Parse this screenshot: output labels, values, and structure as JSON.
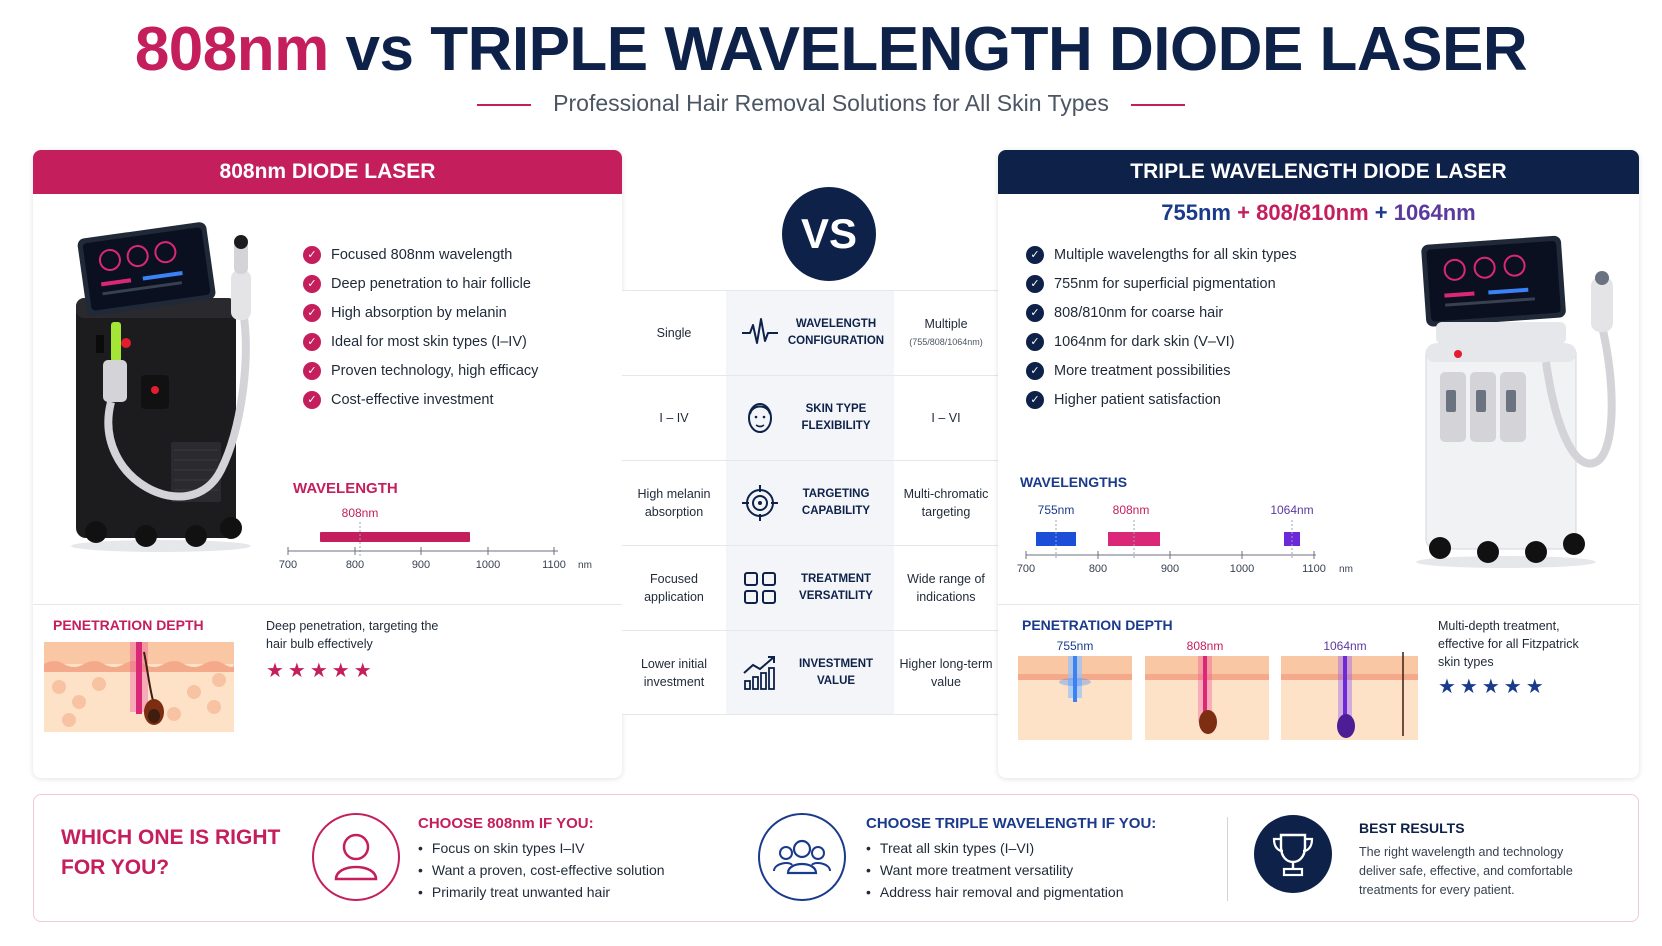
{
  "header": {
    "title_highlight": "808nm",
    "title_rest": "vs TRIPLE WAVELENGTH DIODE LASER",
    "subtitle": "Professional Hair Removal Solutions for All Skin Types"
  },
  "left": {
    "heading": "808nm DIODE LASER",
    "features": [
      "Focused 808nm wavelength",
      "Deep penetration to hair follicle",
      "High absorption by melanin",
      "Ideal for most skin types (I–IV)",
      "Proven technology, high efficacy",
      "Cost-effective investment"
    ],
    "wavelength_label": "WAVELENGTH",
    "band_label": "808nm",
    "axis_ticks": [
      "700",
      "800",
      "900",
      "1000",
      "1100"
    ],
    "axis_unit": "nm",
    "penetration_label": "PENETRATION DEPTH",
    "penetration_text": "Deep penetration, targeting the hair bulb effectively",
    "stars": "★★★★★",
    "accent": "#c41e5c"
  },
  "right": {
    "heading": "TRIPLE WAVELENGTH DIODE LASER",
    "wl_a": "755nm",
    "wl_b": "808/810nm",
    "wl_c": "1064nm",
    "plus": "+",
    "features": [
      "Multiple wavelengths for all skin types",
      "755nm for superficial pigmentation",
      "808/810nm for coarse hair",
      "1064nm for dark skin (V–VI)",
      "More treatment possibilities",
      "Higher patient satisfaction"
    ],
    "wavelength_label": "WAVELENGTHS",
    "band_labels": [
      "755nm",
      "808nm",
      "1064nm"
    ],
    "axis_ticks": [
      "700",
      "800",
      "900",
      "1000",
      "1100"
    ],
    "axis_unit": "nm",
    "penetration_label": "PENETRATION DEPTH",
    "pen_labels": [
      "755nm",
      "808nm",
      "1064nm"
    ],
    "penetration_text": "Multi-depth treatment, effective for all Fitzpatrick skin types",
    "stars": "★★★★★",
    "accent": "#0d2149"
  },
  "vs_label": "VS",
  "comparison": [
    {
      "left": "Single",
      "label": "WAVELENGTH CONFIGURATION",
      "right": "Multiple",
      "right_sub": "(755/808/1064nm)",
      "icon": "waveform-icon"
    },
    {
      "left": "I – IV",
      "label": "SKIN TYPE FLEXIBILITY",
      "right": "I – VI",
      "icon": "face-icon"
    },
    {
      "left": "High melanin absorption",
      "label": "TARGETING CAPABILITY",
      "right": "Multi-chromatic targeting",
      "icon": "target-icon"
    },
    {
      "left": "Focused application",
      "label": "TREATMENT VERSATILITY",
      "right": "Wide range of indications",
      "icon": "grid-icon"
    },
    {
      "left": "Lower initial investment",
      "label": "INVESTMENT VALUE",
      "right": "Higher long-term value",
      "icon": "chart-growth-icon"
    }
  ],
  "bottom": {
    "question_line1": "WHICH ONE IS RIGHT",
    "question_line2": "FOR YOU?",
    "choose_808_head": "CHOOSE 808nm IF YOU:",
    "choose_808": [
      "Focus on skin types I–IV",
      "Want a proven, cost-effective solution",
      "Primarily treat unwanted hair"
    ],
    "choose_triple_head": "CHOOSE TRIPLE WAVELENGTH IF YOU:",
    "choose_triple": [
      "Treat all skin types (I–VI)",
      "Want more treatment versatility",
      "Address hair removal and pigmentation"
    ],
    "best_head": "BEST RESULTS",
    "best_text_1": "The right wavelength and technology",
    "best_text_2": "deliver safe, effective, and comfortable",
    "best_text_3": "treatments for every patient."
  }
}
